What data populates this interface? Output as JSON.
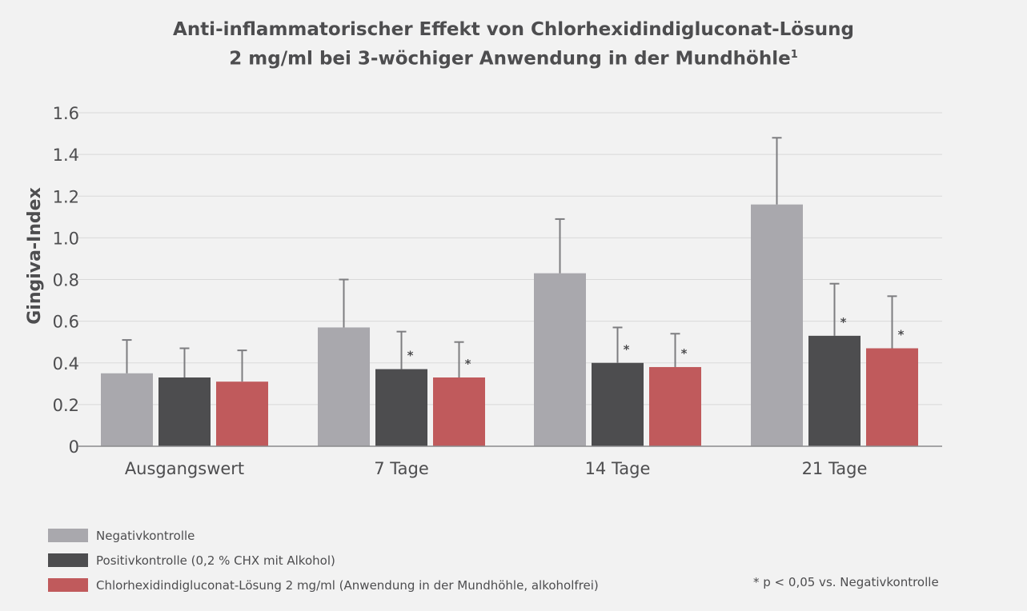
{
  "chart_data": {
    "type": "bar",
    "title_line1": "Anti-inflammatorischer Effekt von Chlorhexidindigluconat-Lösung",
    "title_line2": "2 mg/ml bei 3-wöchiger Anwendung in der Mundhöhle",
    "title_footnote_mark": "1",
    "ylabel": "Gingiva-Index",
    "xlabel": "",
    "ylim": [
      0,
      1.6
    ],
    "yticks": [
      "0",
      "0.2",
      "0.4",
      "0.6",
      "0.8",
      "1.0",
      "1.2",
      "1.4",
      "1.6"
    ],
    "categories": [
      "Ausgangswert",
      "7 Tage",
      "14 Tage",
      "21 Tage"
    ],
    "grid": true,
    "legend_position": "bottom-left",
    "series": [
      {
        "name": "Negativkontrolle",
        "color": "#a9a8ad",
        "values": [
          0.35,
          0.57,
          0.83,
          1.16
        ],
        "error_upper": [
          0.51,
          0.8,
          1.09,
          1.48
        ],
        "significant": [
          false,
          false,
          false,
          false
        ]
      },
      {
        "name": "Positivkontrolle (0,2 % CHX mit Alkohol)",
        "color": "#4d4d4f",
        "values": [
          0.33,
          0.37,
          0.4,
          0.53
        ],
        "error_upper": [
          0.47,
          0.55,
          0.57,
          0.78
        ],
        "significant": [
          false,
          true,
          true,
          true
        ]
      },
      {
        "name": "Chlorhexidindigluconat-Lösung 2 mg/ml (Anwendung in der Mundhöhle, alkoholfrei)",
        "color": "#c05a5c",
        "values": [
          0.31,
          0.33,
          0.38,
          0.47
        ],
        "error_upper": [
          0.46,
          0.5,
          0.54,
          0.72
        ],
        "significant": [
          false,
          true,
          true,
          true
        ]
      }
    ],
    "significance_marker": "*",
    "footnote": "* p < 0,05 vs. Negativkontrolle"
  }
}
